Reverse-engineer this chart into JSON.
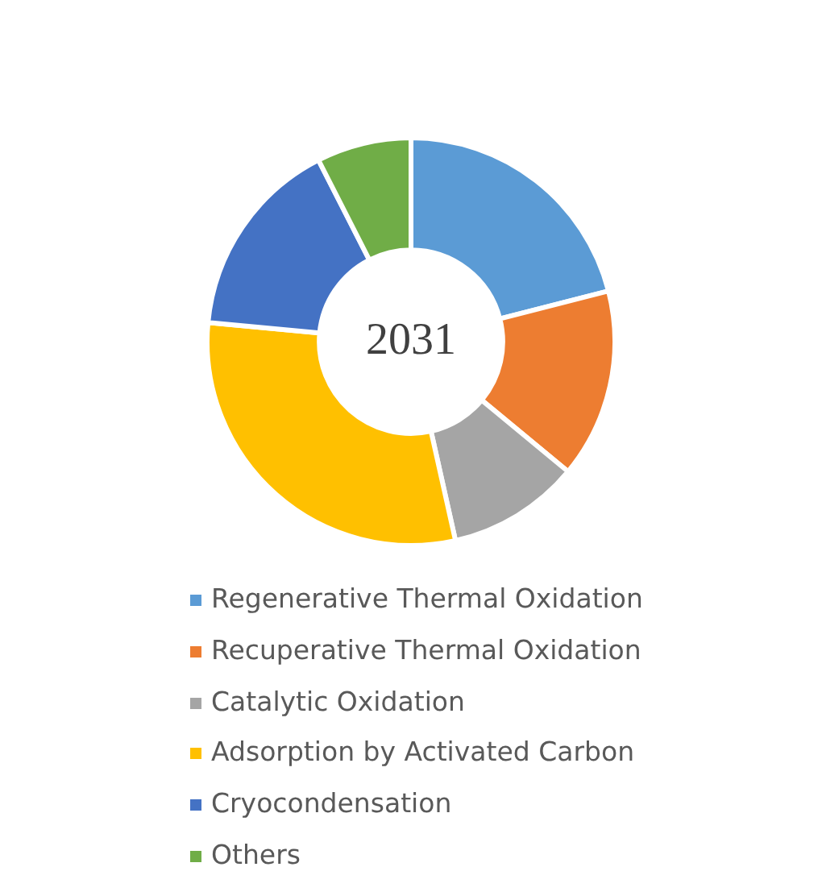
{
  "chart_data": {
    "type": "donut",
    "title": "2031",
    "categories": [
      "Regenerative Thermal Oxidation",
      "Recuperative Thermal Oxidation",
      "Catalytic Oxidation",
      "Adsorption by Activated Carbon",
      "Cryocondensation",
      "Others"
    ],
    "values": [
      21,
      15,
      10.5,
      30,
      16,
      7.5
    ],
    "colors": [
      "#5b9bd5",
      "#ed7d31",
      "#a5a5a5",
      "#ffc000",
      "#4472c4",
      "#70ad47"
    ],
    "legend": "bottom"
  }
}
